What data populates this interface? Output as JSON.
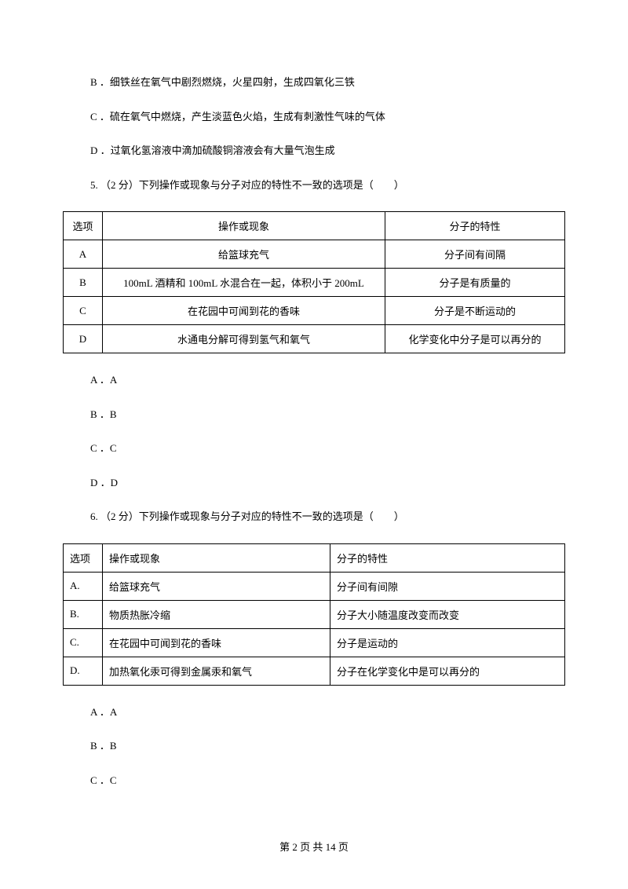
{
  "lines": {
    "optB": "B ．细铁丝在氧气中剧烈燃烧，火星四射，生成四氧化三铁",
    "optC": "C ．硫在氧气中燃烧，产生淡蓝色火焰，生成有刺激性气味的气体",
    "optD": "D ．过氧化氢溶液中滴加硫酸铜溶液会有大量气泡生成",
    "q5": "5. （2 分）下列操作或现象与分子对应的特性不一致的选项是（　　）",
    "a5A": "A ．A",
    "a5B": "B ．B",
    "a5C": "C ．C",
    "a5D": "D ．D",
    "q6": "6. （2 分）下列操作或现象与分子对应的特性不一致的选项是（　　）",
    "a6A": "A ．A",
    "a6B": "B ．B",
    "a6C": "C ．C"
  },
  "table1": {
    "headers": {
      "c1": "选项",
      "c2": "操作或现象",
      "c3": "分子的特性"
    },
    "rows": [
      {
        "c1": "A",
        "c2": "给篮球充气",
        "c3": "分子间有间隔"
      },
      {
        "c1": "B",
        "c2": "100mL 酒精和 100mL 水混合在一起，体积小于 200mL",
        "c3": "分子是有质量的"
      },
      {
        "c1": "C",
        "c2": "在花园中可闻到花的香味",
        "c3": "分子是不断运动的"
      },
      {
        "c1": "D",
        "c2": "水通电分解可得到氢气和氧气",
        "c3": "化学变化中分子是可以再分的"
      }
    ]
  },
  "table2": {
    "headers": {
      "c1": "选项",
      "c2": "操作或现象",
      "c3": "分子的特性"
    },
    "rows": [
      {
        "c1": "A.",
        "c2": "给篮球充气",
        "c3": "分子间有间隙"
      },
      {
        "c1": "B.",
        "c2": "物质热胀冷缩",
        "c3": "分子大小随温度改变而改变"
      },
      {
        "c1": "C.",
        "c2": "在花园中可闻到花的香味",
        "c3": "分子是运动的"
      },
      {
        "c1": "D.",
        "c2": "加热氧化汞可得到金属汞和氧气",
        "c3": "分子在化学变化中是可以再分的"
      }
    ]
  },
  "footer": "第 2 页 共 14 页"
}
